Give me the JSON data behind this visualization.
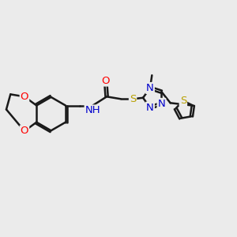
{
  "bg_color": "#ebebeb",
  "bond_color": "#1a1a1a",
  "bond_width": 1.8,
  "dbo": 0.06,
  "atom_colors": {
    "O": "#ff0000",
    "N": "#0000cc",
    "S": "#b8a000",
    "C": "#1a1a1a"
  },
  "afs": 9.5,
  "small_fs": 8.5
}
